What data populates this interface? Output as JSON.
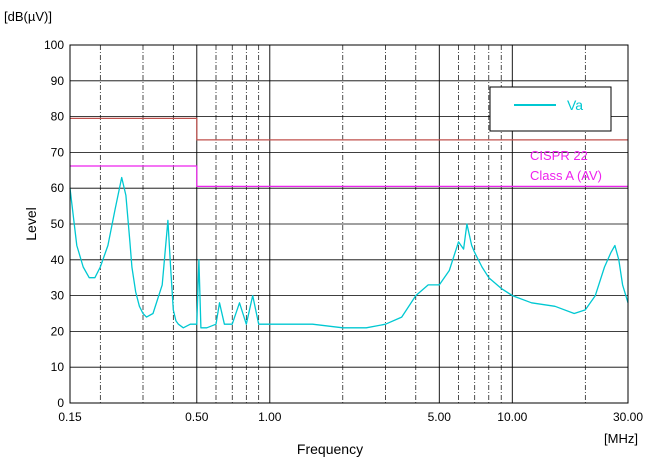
{
  "chart_data": {
    "type": "line",
    "title": "",
    "unit_label": "[dB(µV)]",
    "xunit_label": "[MHz]",
    "xlabel": "Frequency",
    "ylabel": "Level",
    "xscale": "log",
    "xlim": [
      0.15,
      30.0
    ],
    "ylim": [
      0,
      100
    ],
    "yticks": [
      0,
      10,
      20,
      30,
      40,
      50,
      60,
      70,
      80,
      90,
      100
    ],
    "xticks": [
      0.15,
      0.5,
      1.0,
      5.0,
      10.0,
      30.0
    ],
    "xtick_labels": [
      "0.15",
      "0.50",
      "1.00",
      "5.00",
      "10.00",
      "30.00"
    ],
    "minor_x_gridlines": [
      0.2,
      0.3,
      0.4,
      0.6,
      0.7,
      0.8,
      0.9,
      2,
      3,
      4,
      6,
      7,
      8,
      9,
      20
    ],
    "grid": true,
    "legend": {
      "position": "top-right",
      "entries": [
        "Va"
      ]
    },
    "colors": {
      "Va": "#00c8d2",
      "limit_qp": "#c0504d",
      "limit_av": "#ee22ee"
    },
    "annotations": [
      {
        "text_lines": [
          "CISPR 22",
          "Class A (AV)"
        ],
        "color": "#ee22ee"
      }
    ],
    "series": [
      {
        "name": "Va",
        "x": [
          0.15,
          0.16,
          0.17,
          0.18,
          0.19,
          0.2,
          0.215,
          0.23,
          0.245,
          0.255,
          0.265,
          0.27,
          0.28,
          0.29,
          0.3,
          0.31,
          0.33,
          0.36,
          0.38,
          0.39,
          0.4,
          0.41,
          0.42,
          0.44,
          0.47,
          0.5,
          0.51,
          0.52,
          0.55,
          0.6,
          0.62,
          0.65,
          0.7,
          0.75,
          0.8,
          0.85,
          0.9,
          1.0,
          1.2,
          1.5,
          2.0,
          2.5,
          3.0,
          3.5,
          4.0,
          4.5,
          5.0,
          5.5,
          6.0,
          6.3,
          6.5,
          6.8,
          7.0,
          7.5,
          8.0,
          9.0,
          10.0,
          12.0,
          15.0,
          18.0,
          20.0,
          22.0,
          24.0,
          25.5,
          26.5,
          27.5,
          28.5,
          30.0
        ],
        "values": [
          60,
          44,
          38,
          35,
          35,
          38,
          44,
          54,
          63,
          58,
          45,
          38,
          31,
          27,
          25,
          24,
          25,
          33,
          51,
          38,
          26,
          23,
          22,
          21,
          22,
          22,
          40,
          21,
          21,
          22,
          28,
          22,
          22,
          28,
          22,
          30,
          22,
          22,
          22,
          22,
          21,
          21,
          22,
          24,
          30,
          33,
          33,
          37,
          45,
          43,
          50,
          44,
          42,
          38,
          35,
          32,
          30,
          28,
          27,
          25,
          26,
          30,
          38,
          42,
          44,
          40,
          33,
          28
        ]
      },
      {
        "name": "limit_qp",
        "x": [
          0.15,
          0.5,
          0.5,
          30.0
        ],
        "values": [
          79.5,
          79.5,
          73.5,
          73.5
        ]
      },
      {
        "name": "limit_av",
        "x": [
          0.15,
          0.5,
          0.5,
          30.0
        ],
        "values": [
          66.2,
          66.2,
          60.5,
          60.5
        ]
      }
    ]
  }
}
